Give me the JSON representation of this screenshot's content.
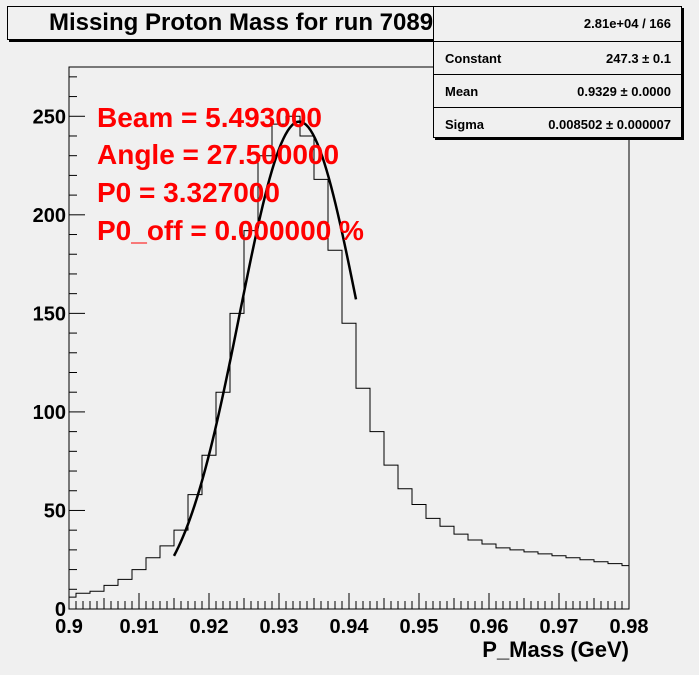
{
  "title": "Missing Proton Mass for run 7089",
  "stats": {
    "header": "2.81e+04 / 166",
    "rows": [
      {
        "name": "Constant",
        "value": "247.3 ± 0.1"
      },
      {
        "name": "Mean",
        "value": "0.9329 ± 0.0000"
      },
      {
        "name": "Sigma",
        "value": "0.008502 ± 0.000007"
      }
    ]
  },
  "annotations": [
    "Beam = 5.493000",
    "Angle = 27.500000",
    "P0 = 3.327000",
    "P0_off = 0.000000 %"
  ],
  "colors": {
    "background": "#f0f0f0",
    "annotation": "#ff0000",
    "line": "#000000"
  },
  "chart_data": {
    "type": "line",
    "title": "Missing Proton Mass for run 7089",
    "xlabel": "P_Mass (GeV)",
    "ylabel": "",
    "xlim": [
      0.9,
      0.98
    ],
    "ylim": [
      0,
      275
    ],
    "xticks": [
      0.9,
      0.91,
      0.92,
      0.93,
      0.94,
      0.95,
      0.96,
      0.97,
      0.98
    ],
    "yticks": [
      0,
      50,
      100,
      150,
      200,
      250
    ],
    "xtick_labels": [
      "0.9",
      "0.91",
      "0.92",
      "0.93",
      "0.94",
      "0.95",
      "0.96",
      "0.97",
      "0.98"
    ],
    "ytick_labels": [
      "0",
      "50",
      "100",
      "150",
      "200",
      "250"
    ],
    "grid": false,
    "series": [
      {
        "style": "histogram",
        "x": [
          0.9,
          0.902,
          0.904,
          0.906,
          0.908,
          0.91,
          0.912,
          0.914,
          0.916,
          0.918,
          0.92,
          0.922,
          0.924,
          0.926,
          0.928,
          0.93,
          0.932,
          0.934,
          0.936,
          0.938,
          0.94,
          0.942,
          0.944,
          0.946,
          0.948,
          0.95,
          0.952,
          0.954,
          0.956,
          0.958,
          0.96,
          0.962,
          0.964,
          0.966,
          0.968,
          0.97,
          0.972,
          0.974,
          0.976,
          0.978,
          0.98
        ],
        "y": [
          6,
          8,
          9,
          12,
          15,
          20,
          26,
          32,
          40,
          58,
          78,
          110,
          150,
          192,
          230,
          246,
          250,
          240,
          218,
          182,
          145,
          112,
          90,
          73,
          61,
          53,
          46,
          42,
          38,
          35,
          33,
          31,
          30,
          29,
          28,
          27,
          26,
          25,
          24,
          23,
          22
        ]
      },
      {
        "style": "gaussian fit",
        "constant": 247.3,
        "mean": 0.9329,
        "sigma": 0.008502,
        "x_range": [
          0.915,
          0.941
        ]
      }
    ]
  }
}
